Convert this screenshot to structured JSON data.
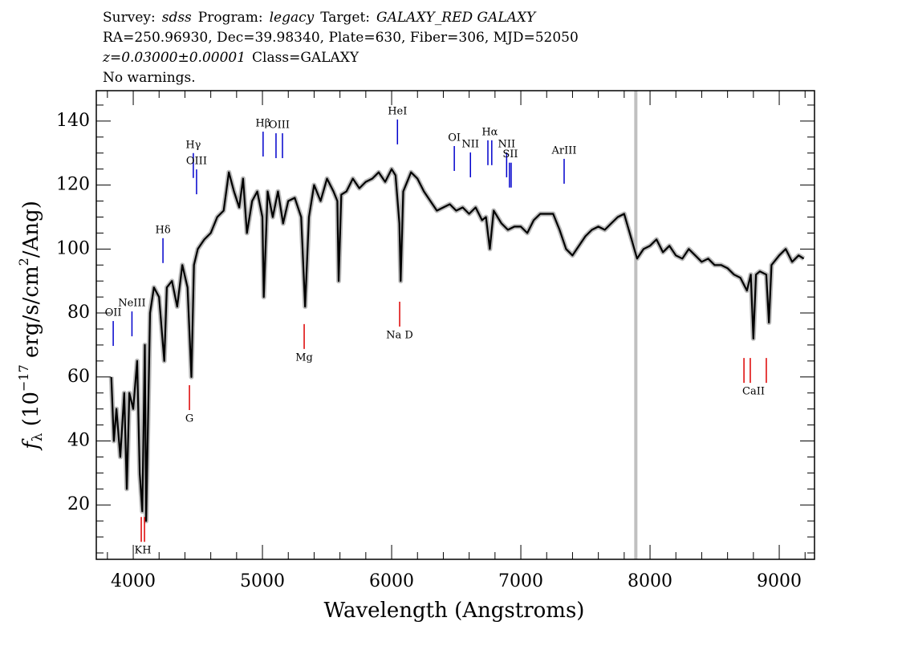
{
  "chart_data": {
    "type": "line",
    "header": [
      [
        {
          "text": "Survey:"
        },
        {
          "text": "sdss",
          "italic": true
        },
        {
          "text": "Program:"
        },
        {
          "text": "legacy",
          "italic": true
        },
        {
          "text": "Target:"
        },
        {
          "text": "GALAXY_RED GALAXY",
          "italic": true
        }
      ],
      [
        {
          "text": "RA=250.96930, Dec=39.98340, Plate=630, Fiber=306, MJD=52050"
        }
      ],
      [
        {
          "text": "z=0.03000±0.00001",
          "italic": true
        },
        {
          "text": "Class=GALAXY"
        }
      ],
      [
        {
          "text": "No warnings."
        }
      ]
    ],
    "xlabel": "Wavelength (Angstroms)",
    "ylabel_parts": [
      "f",
      "λ",
      " (10",
      "−17",
      " erg/s/cm",
      "2",
      "/Ang)"
    ],
    "xlim": [
      3714,
      9273
    ],
    "ylim": [
      3,
      149.5
    ],
    "xticks": [
      4000,
      5000,
      6000,
      7000,
      8000,
      9000
    ],
    "yticks": [
      20,
      40,
      60,
      80,
      100,
      120,
      140
    ],
    "xminorticks": [
      3800,
      4200,
      4400,
      4600,
      4800,
      5200,
      5400,
      5600,
      5800,
      6200,
      6400,
      6600,
      6800,
      7200,
      7400,
      7600,
      7800,
      8200,
      8400,
      8600,
      8800,
      9200
    ],
    "yminorticks": [
      5,
      10,
      15,
      25,
      30,
      35,
      45,
      50,
      55,
      65,
      70,
      75,
      85,
      90,
      95,
      105,
      110,
      115,
      125,
      130,
      135,
      145
    ],
    "marker_line": {
      "x": 7890,
      "color": "#c0c0c0"
    },
    "series": [
      {
        "color": "#000000",
        "x": [
          3830,
          3850,
          3870,
          3900,
          3930,
          3950,
          3970,
          4000,
          4030,
          4050,
          4070,
          4090,
          4100,
          4130,
          4160,
          4200,
          4240,
          4260,
          4300,
          4340,
          4380,
          4420,
          4450,
          4470,
          4500,
          4550,
          4600,
          4650,
          4700,
          4740,
          4780,
          4820,
          4850,
          4880,
          4920,
          4960,
          5000,
          5010,
          5040,
          5080,
          5120,
          5160,
          5200,
          5250,
          5300,
          5330,
          5360,
          5400,
          5450,
          5500,
          5550,
          5580,
          5590,
          5610,
          5650,
          5700,
          5750,
          5800,
          5850,
          5900,
          5950,
          6000,
          6030,
          6060,
          6070,
          6090,
          6150,
          6200,
          6250,
          6300,
          6350,
          6400,
          6450,
          6500,
          6550,
          6600,
          6650,
          6700,
          6730,
          6760,
          6790,
          6850,
          6900,
          6950,
          7000,
          7050,
          7100,
          7150,
          7200,
          7250,
          7300,
          7350,
          7400,
          7450,
          7500,
          7550,
          7600,
          7650,
          7700,
          7750,
          7800,
          7850,
          7900,
          7950,
          8000,
          8050,
          8100,
          8150,
          8200,
          8250,
          8300,
          8350,
          8400,
          8450,
          8500,
          8550,
          8600,
          8650,
          8700,
          8750,
          8780,
          8800,
          8820,
          8850,
          8900,
          8920,
          8940,
          9000,
          9050,
          9100,
          9150,
          9190
        ],
        "values": [
          60,
          40,
          50,
          35,
          55,
          25,
          55,
          50,
          65,
          30,
          18,
          70,
          15,
          80,
          88,
          85,
          65,
          88,
          90,
          82,
          95,
          88,
          60,
          95,
          100,
          103,
          105,
          110,
          112,
          124,
          118,
          113,
          122,
          105,
          115,
          118,
          110,
          85,
          118,
          110,
          118,
          108,
          115,
          116,
          110,
          82,
          110,
          120,
          115,
          122,
          118,
          115,
          90,
          117,
          118,
          122,
          119,
          121,
          122,
          124,
          121,
          125,
          123,
          108,
          90,
          118,
          124,
          122,
          118,
          115,
          112,
          113,
          114,
          112,
          113,
          111,
          113,
          109,
          110,
          100,
          112,
          108,
          106,
          107,
          107,
          105,
          109,
          111,
          111,
          111,
          106,
          100,
          98,
          101,
          104,
          106,
          107,
          106,
          108,
          110,
          111,
          104,
          97,
          100,
          101,
          103,
          99,
          101,
          98,
          97,
          100,
          98,
          96,
          97,
          95,
          95,
          94,
          92,
          91,
          87,
          92,
          72,
          92,
          93,
          92,
          77,
          95,
          98,
          100,
          96,
          98,
          97
        ]
      }
    ],
    "emission_color": "#0000cc",
    "absorption_color": "#dd0000",
    "emission_lines": [
      {
        "label": "OII",
        "x": [
          3845
        ],
        "y": 80
      },
      {
        "label": "NeIII",
        "x": [
          3990
        ],
        "y": 83
      },
      {
        "label": "Hδ",
        "x": [
          4230
        ],
        "y": 105.9
      },
      {
        "label": "Hγ",
        "x": [
          4465
        ],
        "y": 132.5
      },
      {
        "label": "OIII",
        "x": [
          4490
        ],
        "y": 127.4
      },
      {
        "label": "Hβ",
        "x": [
          5005
        ],
        "y": 139.2
      },
      {
        "label": "OIII",
        "x": [
          5105,
          5155
        ],
        "y": 138.7
      },
      {
        "label": "HeI",
        "x": [
          6045
        ],
        "y": 143
      },
      {
        "label": "OI",
        "x": [
          6485
        ],
        "y": 134.7
      },
      {
        "label": "NII",
        "x": [
          6610
        ],
        "y": 132.7
      },
      {
        "label": "Hα",
        "x": [
          6745,
          6775
        ],
        "y": 136.5
      },
      {
        "label": "NII",
        "x": [
          6890
        ],
        "y": 132.7
      },
      {
        "label": "SII",
        "x": [
          6912,
          6925
        ],
        "y": 129.5
      },
      {
        "label": "ArIII",
        "x": [
          7335
        ],
        "y": 130.7
      }
    ],
    "absorption_lines": [
      {
        "label": "KH",
        "x": [
          4062,
          4087
        ],
        "y": 5.7
      },
      {
        "label": "G",
        "x": [
          4435
        ],
        "y": 46.9
      },
      {
        "label": "Mg",
        "x": [
          5323
        ],
        "y": 66
      },
      {
        "label": "Na D",
        "x": [
          6062
        ],
        "y": 73
      },
      {
        "label": "CaII",
        "x": [
          8727,
          8776,
          8900
        ],
        "y": 55.4
      }
    ]
  }
}
